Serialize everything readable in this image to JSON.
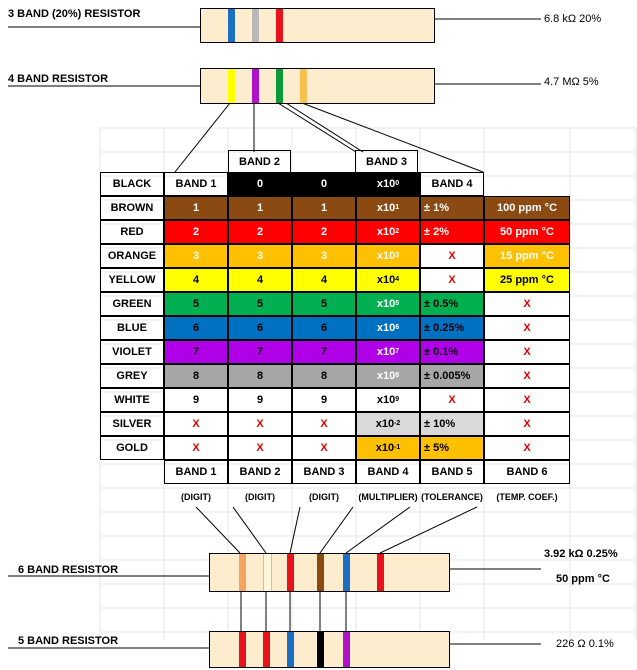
{
  "top_resistors": {
    "three_band": {
      "label": "3 BAND (20%) RESISTOR",
      "value": "6.8 kΩ 20%",
      "bands": [
        "#1a6fc2",
        "#b8b8b8",
        "#e8121c"
      ]
    },
    "four_band": {
      "label": "4 BAND RESISTOR",
      "value": "4.7 MΩ 5%",
      "bands": [
        "#ffff00",
        "#b012c8",
        "#0a9a3a",
        "#f8c050"
      ]
    }
  },
  "headers": {
    "band2_top": "BAND 2",
    "band3_top": "BAND 3"
  },
  "table": {
    "header_row": [
      "BLACK",
      "BAND 1",
      "0",
      "0",
      "x10",
      "0",
      "BAND 4",
      ""
    ],
    "rows": [
      {
        "name": "BROWN",
        "d1": "1",
        "d2": "1",
        "d3": "1",
        "mult_base": "x10",
        "mult_exp": "1",
        "tol": "± 1%",
        "temp": "100 ppm °C",
        "color": "#8a4a12",
        "text": "#ffffff"
      },
      {
        "name": "RED",
        "d1": "2",
        "d2": "2",
        "d3": "2",
        "mult_base": "x10",
        "mult_exp": "2",
        "tol": "± 2%",
        "temp": "50 ppm °C",
        "color": "#ff0000",
        "text": "#ffffff"
      },
      {
        "name": "ORANGE",
        "d1": "3",
        "d2": "3",
        "d3": "3",
        "mult_base": "x10",
        "mult_exp": "3",
        "tol": "X",
        "temp": "15 ppm °C",
        "color": "#ffc000",
        "text": "#ffffff"
      },
      {
        "name": "YELLOW",
        "d1": "4",
        "d2": "4",
        "d3": "4",
        "mult_base": "x10",
        "mult_exp": "4",
        "tol": "X",
        "temp": "25 ppm °C",
        "color": "#ffff00",
        "text": "#000000"
      },
      {
        "name": "GREEN",
        "d1": "5",
        "d2": "5",
        "d3": "5",
        "mult_base": "x10",
        "mult_exp": "5",
        "tol": "± 0.5%",
        "temp": "X",
        "color": "#00b050",
        "text": "#000000"
      },
      {
        "name": "BLUE",
        "d1": "6",
        "d2": "6",
        "d3": "6",
        "mult_base": "x10",
        "mult_exp": "6",
        "tol": "± 0.25%",
        "temp": "X",
        "color": "#0070c0",
        "text": "#000000"
      },
      {
        "name": "VIOLET",
        "d1": "7",
        "d2": "7",
        "d3": "7",
        "mult_base": "x10",
        "mult_exp": "7",
        "tol": "± 0.1%",
        "temp": "X",
        "color": "#b000e8",
        "text": "#000000"
      },
      {
        "name": "GREY",
        "d1": "8",
        "d2": "8",
        "d3": "8",
        "mult_base": "x10",
        "mult_exp": "8",
        "tol": "± 0.005%",
        "temp": "X",
        "color": "#a6a6a6",
        "text": "#000000"
      },
      {
        "name": "WHITE",
        "d1": "9",
        "d2": "9",
        "d3": "9",
        "mult_base": "x10",
        "mult_exp": "9",
        "tol": "X",
        "temp": "X",
        "color": "#ffffff",
        "text": "#000000"
      },
      {
        "name": "SILVER",
        "d1": "X",
        "d2": "X",
        "d3": "X",
        "mult_base": "x10",
        "mult_exp": "-2",
        "tol": "± 10%",
        "temp": "X",
        "color": "#d9d9d9",
        "text": "#000000"
      },
      {
        "name": "GOLD",
        "d1": "X",
        "d2": "X",
        "d3": "X",
        "mult_base": "x10",
        "mult_exp": "-1",
        "tol": "± 5%",
        "temp": "X",
        "color": "#ffc000",
        "text": "#000000"
      }
    ],
    "footer": [
      "BAND 1",
      "BAND 2",
      "BAND 3",
      "BAND 4",
      "BAND 5",
      "BAND 6"
    ],
    "roles": [
      "(DIGIT)",
      "(DIGIT)",
      "(DIGIT)",
      "(MULTIPLIER)",
      "(TOLERANCE)",
      "(TEMP. COEF.)"
    ]
  },
  "bottom_resistors": {
    "six_band": {
      "label": "6 BAND RESISTOR",
      "value": "3.92 kΩ 0.25%",
      "value2": "50 ppm °C",
      "bands": [
        "#f4a460",
        "#fff6dc",
        "#e8121c",
        "#8a4a12",
        "#1a6fc2",
        "#e8121c"
      ]
    },
    "five_band": {
      "label": "5 BAND RESISTOR",
      "value": "226 Ω 0.1%",
      "bands": [
        "#e8121c",
        "#e8121c",
        "#1a6fc2",
        "#000000",
        "#b012c8"
      ]
    }
  }
}
